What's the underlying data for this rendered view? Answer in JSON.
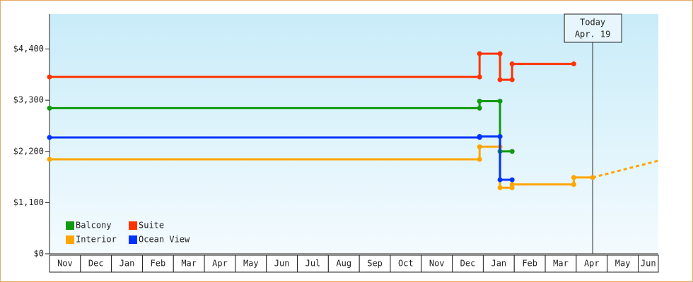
{
  "chart_data": {
    "type": "step-line",
    "xlim": [
      0,
      19.65
    ],
    "xticks": [
      {
        "value": 0,
        "label": "Nov"
      },
      {
        "value": 1,
        "label": "Dec"
      },
      {
        "value": 2,
        "label": "Jan"
      },
      {
        "value": 3,
        "label": "Feb"
      },
      {
        "value": 4,
        "label": "Mar"
      },
      {
        "value": 5,
        "label": "Apr"
      },
      {
        "value": 6,
        "label": "May"
      },
      {
        "value": 7,
        "label": "Jun"
      },
      {
        "value": 8,
        "label": "Jul"
      },
      {
        "value": 9,
        "label": "Aug"
      },
      {
        "value": 10,
        "label": "Sep"
      },
      {
        "value": 11,
        "label": "Oct"
      },
      {
        "value": 12,
        "label": "Nov"
      },
      {
        "value": 13,
        "label": "Dec"
      },
      {
        "value": 14,
        "label": "Jan"
      },
      {
        "value": 15,
        "label": "Feb"
      },
      {
        "value": 16,
        "label": "Mar"
      },
      {
        "value": 17,
        "label": "Apr"
      },
      {
        "value": 18,
        "label": "May"
      },
      {
        "value": 19,
        "label": "Jun"
      }
    ],
    "ylim": [
      0,
      5150
    ],
    "yticks": [
      {
        "value": 0,
        "label": "$0"
      },
      {
        "value": 1100,
        "label": "$1,100"
      },
      {
        "value": 2200,
        "label": "$2,200"
      },
      {
        "value": 3300,
        "label": "$3,300"
      },
      {
        "value": 4400,
        "label": "$4,400"
      }
    ],
    "series": [
      {
        "name": "Balcony",
        "color": "#119911",
        "x": [
          0,
          13.88,
          13.88,
          14.54,
          14.54,
          14.93
        ],
        "values": [
          3130,
          3130,
          3280,
          3280,
          2200,
          2200
        ]
      },
      {
        "name": "Suite",
        "color": "#ff3300",
        "x": [
          0,
          13.88,
          13.88,
          14.54,
          14.54,
          14.93,
          14.93,
          16.92
        ],
        "values": [
          3800,
          3800,
          4300,
          4300,
          3740,
          3740,
          4080,
          4080
        ]
      },
      {
        "name": "Interior",
        "color": "#ffa500",
        "x": [
          0,
          13.88,
          13.88,
          14.54,
          14.54,
          14.93,
          14.93,
          16.92,
          16.92,
          17.53
        ],
        "values": [
          2030,
          2030,
          2300,
          2300,
          1420,
          1420,
          1490,
          1490,
          1640,
          1640
        ],
        "forecast": {
          "x": [
            17.53,
            19.65
          ],
          "values": [
            1640,
            2000
          ]
        }
      },
      {
        "name": "Ocean View",
        "color": "#0033ff",
        "x": [
          0,
          13.88,
          13.88,
          14.54,
          14.54,
          14.93
        ],
        "values": [
          2500,
          2500,
          2520,
          2520,
          1590,
          1590
        ]
      }
    ],
    "annotation": {
      "x": 17.53,
      "lines": [
        "Today",
        "Apr. 19"
      ]
    },
    "legend": "bottom-left"
  }
}
